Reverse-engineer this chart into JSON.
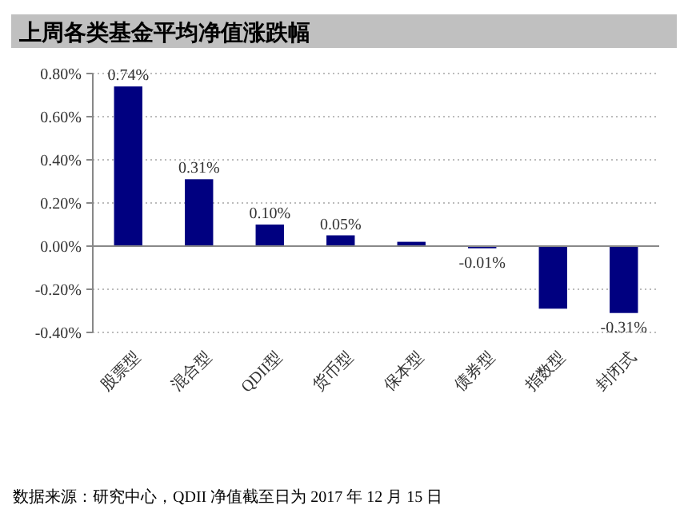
{
  "chart_data": {
    "type": "bar",
    "title": "上周各类基金平均净值涨跌幅",
    "categories": [
      "股票型",
      "混合型",
      "QDII型",
      "货币型",
      "保本型",
      "债券型",
      "指数型",
      "封闭式"
    ],
    "values": [
      0.74,
      0.31,
      0.1,
      0.05,
      0.02,
      -0.01,
      -0.29,
      -0.31
    ],
    "color": "#000080",
    "value_labels": [
      "0.74%",
      "0.31%",
      "0.10%",
      "0.05%",
      null,
      "-0.01%",
      null,
      "-0.31%"
    ],
    "ylim": [
      -0.4,
      0.8
    ],
    "yticks": [
      {
        "value": -0.4,
        "label": "-0.40%"
      },
      {
        "value": -0.2,
        "label": "-0.20%"
      },
      {
        "value": 0,
        "label": "0.00%"
      },
      {
        "value": 0.2,
        "label": "0.20%"
      },
      {
        "value": 0.4,
        "label": "0.40%"
      },
      {
        "value": 0.6,
        "label": "0.60%"
      },
      {
        "value": 0.8,
        "label": "0.80%"
      }
    ],
    "grid": "y",
    "annotations": [
      "数据来源：研究中心，QDII 净值截至日为 2017 年 12 月 15 日"
    ]
  }
}
